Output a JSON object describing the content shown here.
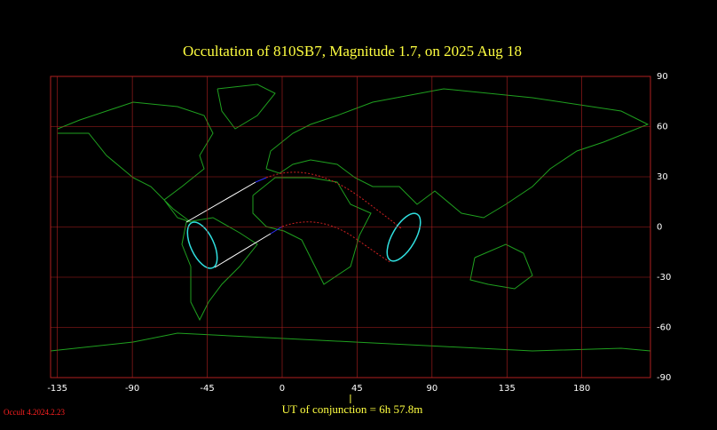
{
  "chart_data": {
    "type": "map",
    "title": "Occultation  of  810SB7,      Magnitude 1.7,   on  2025 Aug 18",
    "xlim": [
      -139.1,
      221.2
    ],
    "ylim": [
      -90,
      90
    ],
    "xticks": [
      -135,
      -90,
      -45,
      0,
      45,
      90,
      135,
      180
    ],
    "yticks": [
      90,
      60,
      30,
      0,
      -30,
      -60,
      -90
    ],
    "grid": true,
    "grid_color": "#b02020",
    "conjunction_label": "UT of conjunction =  6h 57.8m",
    "conjunction_x": 41,
    "version": "Occult 4.2024.2.23"
  }
}
